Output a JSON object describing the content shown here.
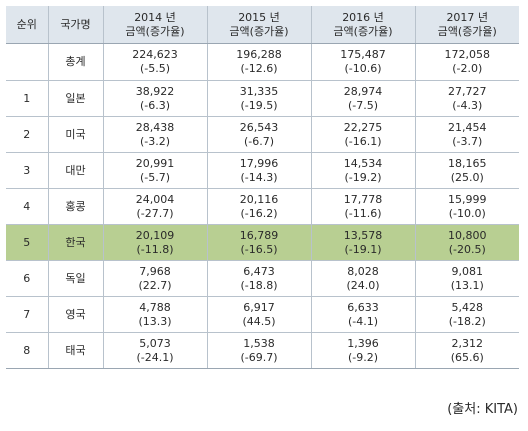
{
  "table": {
    "headers": {
      "rank": "순위",
      "country": "국가명",
      "years": [
        {
          "year": "2014 년",
          "sub": "금액(증가율)"
        },
        {
          "year": "2015 년",
          "sub": "금액(증가율)"
        },
        {
          "year": "2016 년",
          "sub": "금액(증가율)"
        },
        {
          "year": "2017 년",
          "sub": "금액(증가율)"
        }
      ]
    },
    "rows": [
      {
        "rank": "",
        "country": "총계",
        "cells": [
          {
            "amount": "224,623",
            "rate": "(-5.5)"
          },
          {
            "amount": "196,288",
            "rate": "(-12.6)"
          },
          {
            "amount": "175,487",
            "rate": "(-10.6)"
          },
          {
            "amount": "172,058",
            "rate": "(-2.0)"
          }
        ]
      },
      {
        "rank": "1",
        "country": "일본",
        "cells": [
          {
            "amount": "38,922",
            "rate": "(-6.3)"
          },
          {
            "amount": "31,335",
            "rate": "(-19.5)"
          },
          {
            "amount": "28,974",
            "rate": "(-7.5)"
          },
          {
            "amount": "27,727",
            "rate": "(-4.3)"
          }
        ]
      },
      {
        "rank": "2",
        "country": "미국",
        "cells": [
          {
            "amount": "28,438",
            "rate": "(-3.2)"
          },
          {
            "amount": "26,543",
            "rate": "(-6.7)"
          },
          {
            "amount": "22,275",
            "rate": "(-16.1)"
          },
          {
            "amount": "21,454",
            "rate": "(-3.7)"
          }
        ]
      },
      {
        "rank": "3",
        "country": "대만",
        "cells": [
          {
            "amount": "20,991",
            "rate": "(-5.7)"
          },
          {
            "amount": "17,996",
            "rate": "(-14.3)"
          },
          {
            "amount": "14,534",
            "rate": "(-19.2)"
          },
          {
            "amount": "18,165",
            "rate": "(25.0)"
          }
        ]
      },
      {
        "rank": "4",
        "country": "홍콩",
        "cells": [
          {
            "amount": "24,004",
            "rate": "(-27.7)"
          },
          {
            "amount": "20,116",
            "rate": "(-16.2)"
          },
          {
            "amount": "17,778",
            "rate": "(-11.6)"
          },
          {
            "amount": "15,999",
            "rate": "(-10.0)"
          }
        ]
      },
      {
        "rank": "5",
        "country": "한국",
        "highlight": true,
        "cells": [
          {
            "amount": "20,109",
            "rate": "(-11.8)"
          },
          {
            "amount": "16,789",
            "rate": "(-16.5)"
          },
          {
            "amount": "13,578",
            "rate": "(-19.1)"
          },
          {
            "amount": "10,800",
            "rate": "(-20.5)"
          }
        ]
      },
      {
        "rank": "6",
        "country": "독일",
        "cells": [
          {
            "amount": "7,968",
            "rate": "(22.7)"
          },
          {
            "amount": "6,473",
            "rate": "(-18.8)"
          },
          {
            "amount": "8,028",
            "rate": "(24.0)"
          },
          {
            "amount": "9,081",
            "rate": "(13.1)"
          }
        ]
      },
      {
        "rank": "7",
        "country": "영국",
        "cells": [
          {
            "amount": "4,788",
            "rate": "(13.3)"
          },
          {
            "amount": "6,917",
            "rate": "(44.5)"
          },
          {
            "amount": "6,633",
            "rate": "(-4.1)"
          },
          {
            "amount": "5,428",
            "rate": "(-18.2)"
          }
        ]
      },
      {
        "rank": "8",
        "country": "태국",
        "cells": [
          {
            "amount": "5,073",
            "rate": "(-24.1)"
          },
          {
            "amount": "1,538",
            "rate": "(-69.7)"
          },
          {
            "amount": "1,396",
            "rate": "(-9.2)"
          },
          {
            "amount": "2,312",
            "rate": "(65.6)"
          }
        ]
      }
    ]
  },
  "source": "(출처: KITA)",
  "colors": {
    "header_bg": "#dfe6ed",
    "highlight_bg": "#b8cf92",
    "border": "#b8c2cc"
  }
}
